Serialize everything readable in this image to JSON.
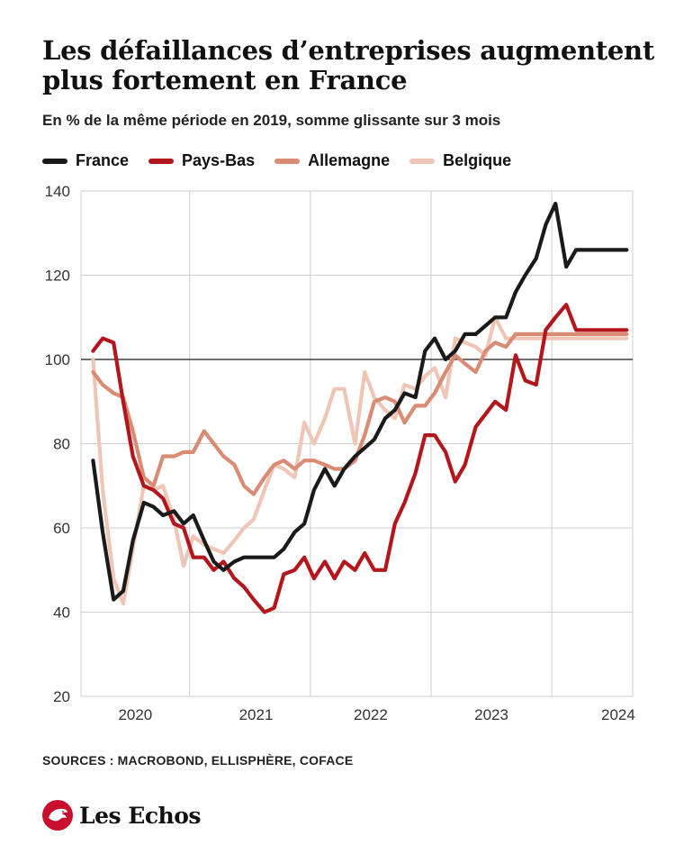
{
  "header": {
    "title": "Les défaillances d’entreprises augmentent plus fortement en France",
    "subtitle": "En % de la même période en 2019, somme glissante sur 3 mois"
  },
  "source": "SOURCES : MACROBOND, ELLISPHÈRE, COFACE",
  "brand": {
    "name": "Les Echos",
    "logo_icon": "lion-emblem-icon",
    "color": "#c8102e"
  },
  "chart_data": {
    "type": "line",
    "title": "Les défaillances d’entreprises augmentent plus fortement en France",
    "subtitle": "En % de la même période en 2019, somme glissante sur 3 mois",
    "xlabel": "",
    "ylabel": "",
    "x_unit": "year",
    "xlim": [
      2019.6,
      2024.17
    ],
    "ylim": [
      20,
      140
    ],
    "yticks": [
      20,
      40,
      60,
      80,
      100,
      120,
      140
    ],
    "xticks": [
      2020,
      2021,
      2022,
      2023,
      2024
    ],
    "xtick_labels": [
      "2020",
      "2021",
      "2022",
      "2023",
      "2024"
    ],
    "reference_line": 100,
    "grid": true,
    "legend": "top-left",
    "series": [
      {
        "name": "France",
        "color": "#1a1a1a",
        "x": [
          2019.7,
          2019.78,
          2019.87,
          2019.95,
          2020.03,
          2020.12,
          2020.2,
          2020.28,
          2020.37,
          2020.45,
          2020.53,
          2020.62,
          2020.7,
          2020.78,
          2020.87,
          2020.95,
          2021.03,
          2021.12,
          2021.2,
          2021.28,
          2021.37,
          2021.45,
          2021.53,
          2021.62,
          2021.7,
          2021.78,
          2021.87,
          2021.95,
          2022.03,
          2022.12,
          2022.2,
          2022.28,
          2022.37,
          2022.45,
          2022.53,
          2022.62,
          2022.7,
          2022.78,
          2022.87,
          2022.95,
          2023.03,
          2023.12,
          2023.2,
          2023.28,
          2023.37,
          2023.45,
          2023.53,
          2023.62,
          2023.7,
          2023.78,
          2023.87,
          2023.95,
          2024.03,
          2024.12
        ],
        "y": [
          76,
          59,
          43,
          45,
          57,
          66,
          65,
          63,
          64,
          61,
          63,
          57,
          52,
          50,
          52,
          53,
          53,
          53,
          53,
          55,
          59,
          61,
          69,
          74,
          70,
          74,
          77,
          79,
          81,
          86,
          88,
          92,
          91,
          102,
          105,
          100,
          102,
          106,
          106,
          108,
          110,
          110,
          116,
          120,
          124,
          132,
          137,
          122,
          126,
          126,
          126,
          126,
          126,
          126
        ]
      },
      {
        "name": "Pays-Bas",
        "color": "#b3171d",
        "x": [
          2019.7,
          2019.78,
          2019.87,
          2019.95,
          2020.03,
          2020.12,
          2020.2,
          2020.28,
          2020.37,
          2020.45,
          2020.53,
          2020.62,
          2020.7,
          2020.78,
          2020.87,
          2020.95,
          2021.03,
          2021.12,
          2021.2,
          2021.28,
          2021.37,
          2021.45,
          2021.53,
          2021.62,
          2021.7,
          2021.78,
          2021.87,
          2021.95,
          2022.03,
          2022.12,
          2022.2,
          2022.28,
          2022.37,
          2022.45,
          2022.53,
          2022.62,
          2022.7,
          2022.78,
          2022.87,
          2022.95,
          2023.03,
          2023.12,
          2023.2,
          2023.28,
          2023.37,
          2023.45,
          2023.53,
          2023.62,
          2023.7,
          2023.78,
          2023.87,
          2023.95,
          2024.03,
          2024.12
        ],
        "y": [
          102,
          105,
          104,
          90,
          77,
          70,
          69,
          67,
          61,
          60,
          53,
          53,
          50,
          52,
          48,
          46,
          43,
          40,
          41,
          49,
          50,
          53,
          48,
          52,
          48,
          52,
          50,
          54,
          50,
          50,
          61,
          66,
          73,
          82,
          82,
          78,
          71,
          75,
          84,
          87,
          90,
          88,
          101,
          95,
          94,
          107,
          110,
          113,
          107,
          107,
          107,
          107,
          107,
          107
        ]
      },
      {
        "name": "Allemagne",
        "color": "#d98b73",
        "x": [
          2019.7,
          2019.78,
          2019.87,
          2019.95,
          2020.03,
          2020.12,
          2020.2,
          2020.28,
          2020.37,
          2020.45,
          2020.53,
          2020.62,
          2020.7,
          2020.78,
          2020.87,
          2020.95,
          2021.03,
          2021.12,
          2021.2,
          2021.28,
          2021.37,
          2021.45,
          2021.53,
          2021.62,
          2021.7,
          2021.78,
          2021.87,
          2021.95,
          2022.03,
          2022.12,
          2022.2,
          2022.28,
          2022.37,
          2022.45,
          2022.53,
          2022.62,
          2022.7,
          2022.78,
          2022.87,
          2022.95,
          2023.03,
          2023.12,
          2023.2,
          2023.28,
          2023.37,
          2023.45,
          2023.53,
          2023.62,
          2023.7,
          2023.78,
          2023.87,
          2023.95,
          2024.03,
          2024.12
        ],
        "y": [
          97,
          94,
          92,
          91,
          83,
          72,
          70,
          77,
          77,
          78,
          78,
          83,
          80,
          77,
          75,
          70,
          68,
          72,
          75,
          76,
          74,
          76,
          76,
          75,
          74,
          74,
          76,
          82,
          90,
          91,
          90,
          85,
          89,
          89,
          92,
          97,
          101,
          99,
          97,
          102,
          104,
          103,
          106,
          106,
          106,
          106,
          106,
          106,
          106,
          106,
          106,
          106,
          106,
          106
        ]
      },
      {
        "name": "Belgique",
        "color": "#efc6b6",
        "x": [
          2019.7,
          2019.78,
          2019.87,
          2019.95,
          2020.03,
          2020.12,
          2020.2,
          2020.28,
          2020.37,
          2020.45,
          2020.53,
          2020.62,
          2020.7,
          2020.78,
          2020.87,
          2020.95,
          2021.03,
          2021.12,
          2021.2,
          2021.28,
          2021.37,
          2021.45,
          2021.53,
          2021.62,
          2021.7,
          2021.78,
          2021.87,
          2021.95,
          2022.03,
          2022.12,
          2022.2,
          2022.28,
          2022.37,
          2022.45,
          2022.53,
          2022.62,
          2022.7,
          2022.78,
          2022.87,
          2022.95,
          2023.03,
          2023.12,
          2023.2,
          2023.28,
          2023.37,
          2023.45,
          2023.53,
          2023.62,
          2023.7,
          2023.78,
          2023.87,
          2023.95,
          2024.03,
          2024.12
        ],
        "y": [
          100,
          69,
          48,
          42,
          55,
          70,
          69,
          70,
          62,
          51,
          58,
          56,
          55,
          54,
          57,
          60,
          62,
          69,
          75,
          74,
          72,
          85,
          80,
          86,
          93,
          93,
          80,
          97,
          91,
          88,
          86,
          94,
          93,
          96,
          98,
          91,
          105,
          104,
          103,
          101,
          110,
          105,
          105,
          105,
          105,
          105,
          105,
          105,
          105,
          105,
          105,
          105,
          105,
          105
        ]
      }
    ]
  }
}
